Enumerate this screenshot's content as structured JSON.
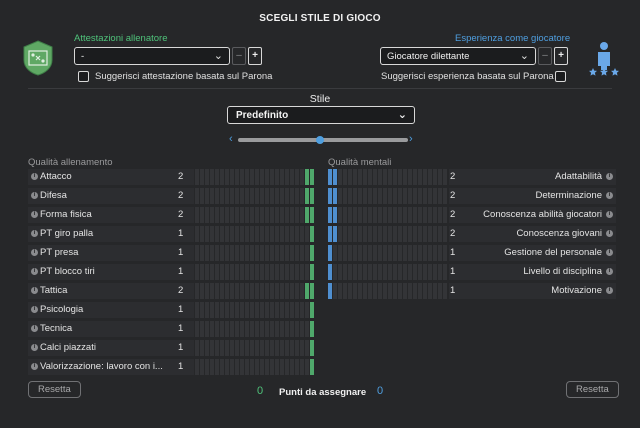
{
  "title": "SCEGLI STILE DI GIOCO",
  "coach": {
    "section_label": "Attestazioni allenatore",
    "select_value": "-",
    "minus": "–",
    "plus": "+",
    "suggest_label": "Suggerisci attestazione basata sul Parona",
    "suggest_checked": false
  },
  "player": {
    "section_label": "Esperienza come giocatore",
    "select_value": "Giocatore dilettante",
    "minus": "–",
    "plus": "+",
    "suggest_label": "Suggerisci esperienza basata sul Parona",
    "suggest_checked": false
  },
  "style": {
    "label": "Stile",
    "value": "Predefinito",
    "slider_value": 0.5,
    "left_arrow": "‹",
    "right_arrow": "›"
  },
  "training": {
    "header": "Qualità allenamento",
    "max": 24,
    "items": [
      {
        "label": "Attacco",
        "value": "2"
      },
      {
        "label": "Difesa",
        "value": "2"
      },
      {
        "label": "Forma fisica",
        "value": "2"
      },
      {
        "label": "PT giro palla",
        "value": "1"
      },
      {
        "label": "PT presa",
        "value": "1"
      },
      {
        "label": "PT blocco tiri",
        "value": "1"
      },
      {
        "label": "Tattica",
        "value": "2"
      },
      {
        "label": "Psicologia",
        "value": "1"
      },
      {
        "label": "Tecnica",
        "value": "1"
      },
      {
        "label": "Calci piazzati",
        "value": "1"
      },
      {
        "label": "Valorizzazione: lavoro con i...",
        "value": "1"
      }
    ]
  },
  "mental": {
    "header": "Qualità mentali",
    "max": 24,
    "items": [
      {
        "label": "Adattabilità",
        "value": "2"
      },
      {
        "label": "Determinazione",
        "value": "2"
      },
      {
        "label": "Conoscenza abilità giocatori",
        "value": "2"
      },
      {
        "label": "Conoscenza giovani",
        "value": "2"
      },
      {
        "label": "Gestione del personale",
        "value": "1"
      },
      {
        "label": "Livello di disciplina",
        "value": "1"
      },
      {
        "label": "Motivazione",
        "value": "1"
      }
    ]
  },
  "footer": {
    "reset_label": "Resetta",
    "points_label": "Punti da assegnare",
    "points_left": "0",
    "points_right": "0"
  },
  "colors": {
    "accent_green": "#4fc27a",
    "accent_blue": "#4f9fe0",
    "background": "#262729"
  },
  "icons": {
    "coach_badge": "tactics-board-badge-icon",
    "player_badge": "player-silhouette-stars-icon",
    "info": "info-icon",
    "chevron": "chevron-down-icon"
  }
}
